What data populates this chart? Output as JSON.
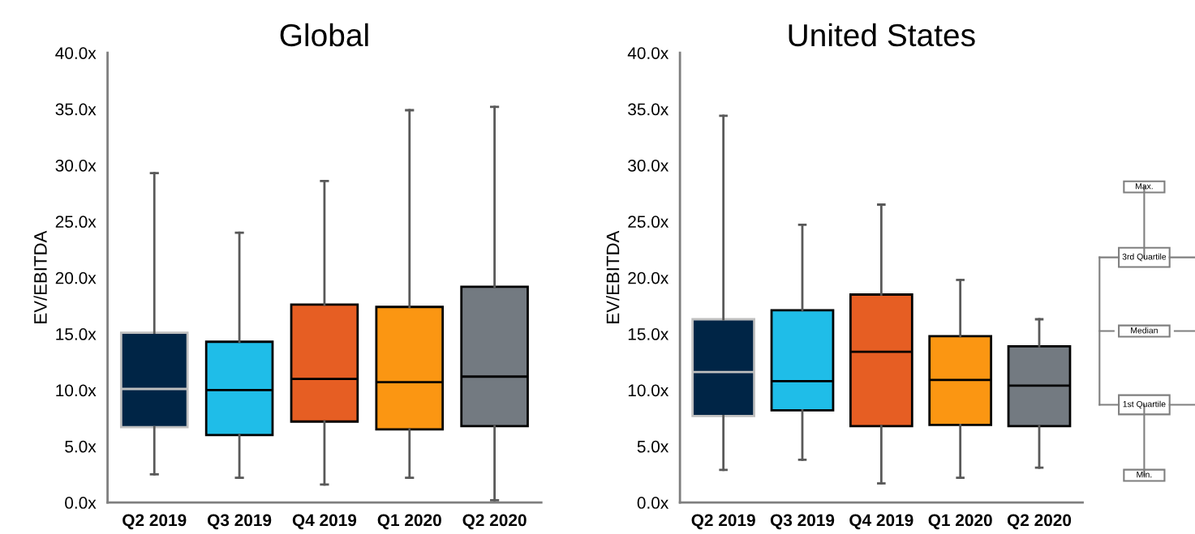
{
  "chart_data": [
    {
      "type": "box",
      "title": "Global",
      "ylabel": "EV/EBITDA",
      "categories": [
        "Q2 2019",
        "Q3 2019",
        "Q4 2019",
        "Q1 2020",
        "Q2 2020"
      ],
      "colors": [
        "#002546",
        "#1fbde8",
        "#e65e23",
        "#fb9612",
        "#737a81"
      ],
      "boxes": [
        {
          "low": 2.5,
          "q1": 6.7,
          "median": 10.1,
          "q3": 15.1,
          "high": 29.3
        },
        {
          "low": 2.2,
          "q1": 6.0,
          "median": 10.0,
          "q3": 14.3,
          "high": 24.0
        },
        {
          "low": 1.6,
          "q1": 7.2,
          "median": 11.0,
          "q3": 17.6,
          "high": 28.6
        },
        {
          "low": 2.2,
          "q1": 6.5,
          "median": 10.7,
          "q3": 17.4,
          "high": 34.9
        },
        {
          "low": 0.2,
          "q1": 6.8,
          "median": 11.2,
          "q3": 19.2,
          "high": 35.2
        }
      ],
      "ylim": [
        0,
        40
      ],
      "yticks": [
        {
          "value": 0,
          "label": "0.0x"
        },
        {
          "value": 5,
          "label": "5.0x"
        },
        {
          "value": 10,
          "label": "10.0x"
        },
        {
          "value": 15,
          "label": "15.0x"
        },
        {
          "value": 20,
          "label": "20.0x"
        },
        {
          "value": 25,
          "label": "25.0x"
        },
        {
          "value": 30,
          "label": "30.0x"
        },
        {
          "value": 35,
          "label": "35.0x"
        },
        {
          "value": 40,
          "label": "40.0x"
        }
      ],
      "grid": false
    },
    {
      "type": "box",
      "title": "United States",
      "ylabel": "EV/EBITDA",
      "categories": [
        "Q2 2019",
        "Q3 2019",
        "Q4 2019",
        "Q1 2020",
        "Q2 2020"
      ],
      "colors": [
        "#002546",
        "#1fbde8",
        "#e65e23",
        "#fb9612",
        "#737a81"
      ],
      "boxes": [
        {
          "low": 2.9,
          "q1": 7.7,
          "median": 11.6,
          "q3": 16.3,
          "high": 34.4
        },
        {
          "low": 3.8,
          "q1": 8.2,
          "median": 10.8,
          "q3": 17.1,
          "high": 24.7
        },
        {
          "low": 1.7,
          "q1": 6.8,
          "median": 13.4,
          "q3": 18.5,
          "high": 26.5
        },
        {
          "low": 2.2,
          "q1": 6.9,
          "median": 10.9,
          "q3": 14.8,
          "high": 19.8
        },
        {
          "low": 3.1,
          "q1": 6.8,
          "median": 10.4,
          "q3": 13.9,
          "high": 16.3
        }
      ],
      "ylim": [
        0,
        40
      ],
      "yticks": [
        {
          "value": 0,
          "label": "0.0x"
        },
        {
          "value": 5,
          "label": "5.0x"
        },
        {
          "value": 10,
          "label": "10.0x"
        },
        {
          "value": 15,
          "label": "15.0x"
        },
        {
          "value": 20,
          "label": "20.0x"
        },
        {
          "value": 25,
          "label": "25.0x"
        },
        {
          "value": 30,
          "label": "30.0x"
        },
        {
          "value": 35,
          "label": "35.0x"
        },
        {
          "value": 40,
          "label": "40.0x"
        }
      ],
      "grid": false,
      "annotations": [
        "Max.",
        "3rd Quartile",
        "Median",
        "1st Quartile",
        "Min."
      ]
    }
  ]
}
